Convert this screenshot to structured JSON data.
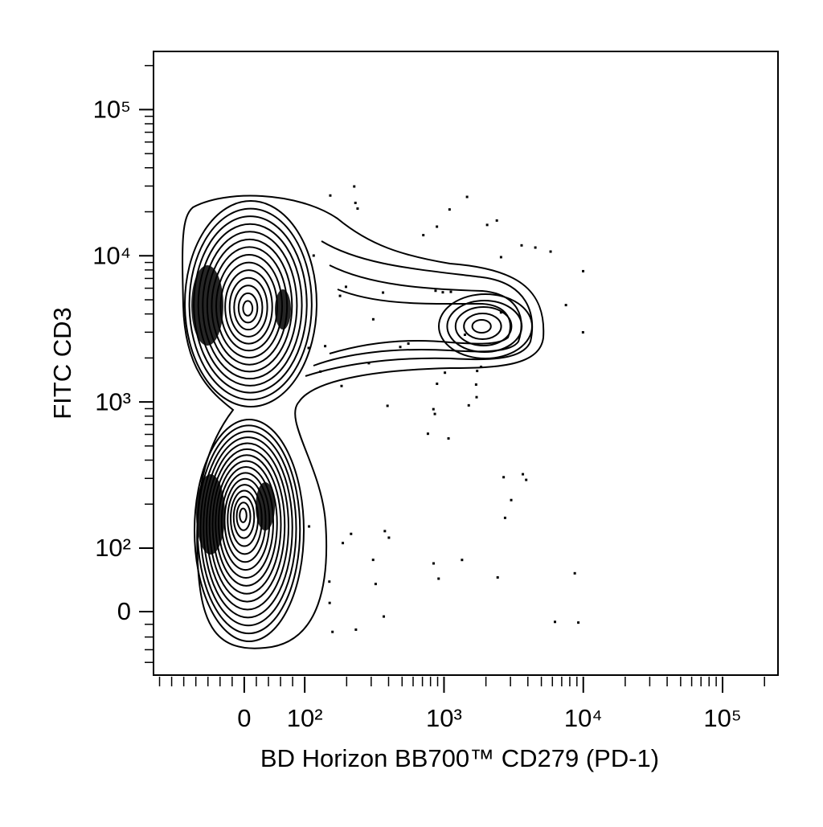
{
  "chart_data": {
    "type": "contour",
    "x_label": "BD Horizon BB700™ CD279 (PD-1)",
    "y_label": "FITC CD3",
    "scale": "biexponential",
    "xlim": [
      -150,
      250000
    ],
    "ylim": [
      -100,
      250000
    ],
    "xticks": [
      {
        "value": 0,
        "label": "0"
      },
      {
        "value": 100,
        "label": "10²"
      },
      {
        "value": 1000,
        "label": "10³"
      },
      {
        "value": 10000,
        "label": "10⁴"
      },
      {
        "value": 100000,
        "label": "10⁵"
      }
    ],
    "yticks": [
      {
        "value": 0,
        "label": "0"
      },
      {
        "value": 100,
        "label": "10²"
      },
      {
        "value": 1000,
        "label": "10³"
      },
      {
        "value": 10000,
        "label": "10⁴"
      },
      {
        "value": 100000,
        "label": "10⁵"
      }
    ],
    "xminorticks": [
      -140,
      -120,
      -100,
      -80,
      -60,
      -40,
      -20,
      20,
      40,
      60,
      80,
      200,
      300,
      400,
      500,
      600,
      700,
      800,
      900,
      2000,
      3000,
      4000,
      5000,
      6000,
      7000,
      8000,
      9000,
      20000,
      30000,
      40000,
      50000,
      60000,
      70000,
      80000,
      90000,
      200000
    ],
    "yminorticks": [
      -80,
      -60,
      -40,
      -20,
      200,
      300,
      400,
      500,
      600,
      700,
      800,
      900,
      2000,
      3000,
      4000,
      5000,
      6000,
      7000,
      8000,
      9000,
      20000,
      30000,
      40000,
      50000,
      60000,
      70000,
      80000,
      90000,
      200000
    ]
  }
}
